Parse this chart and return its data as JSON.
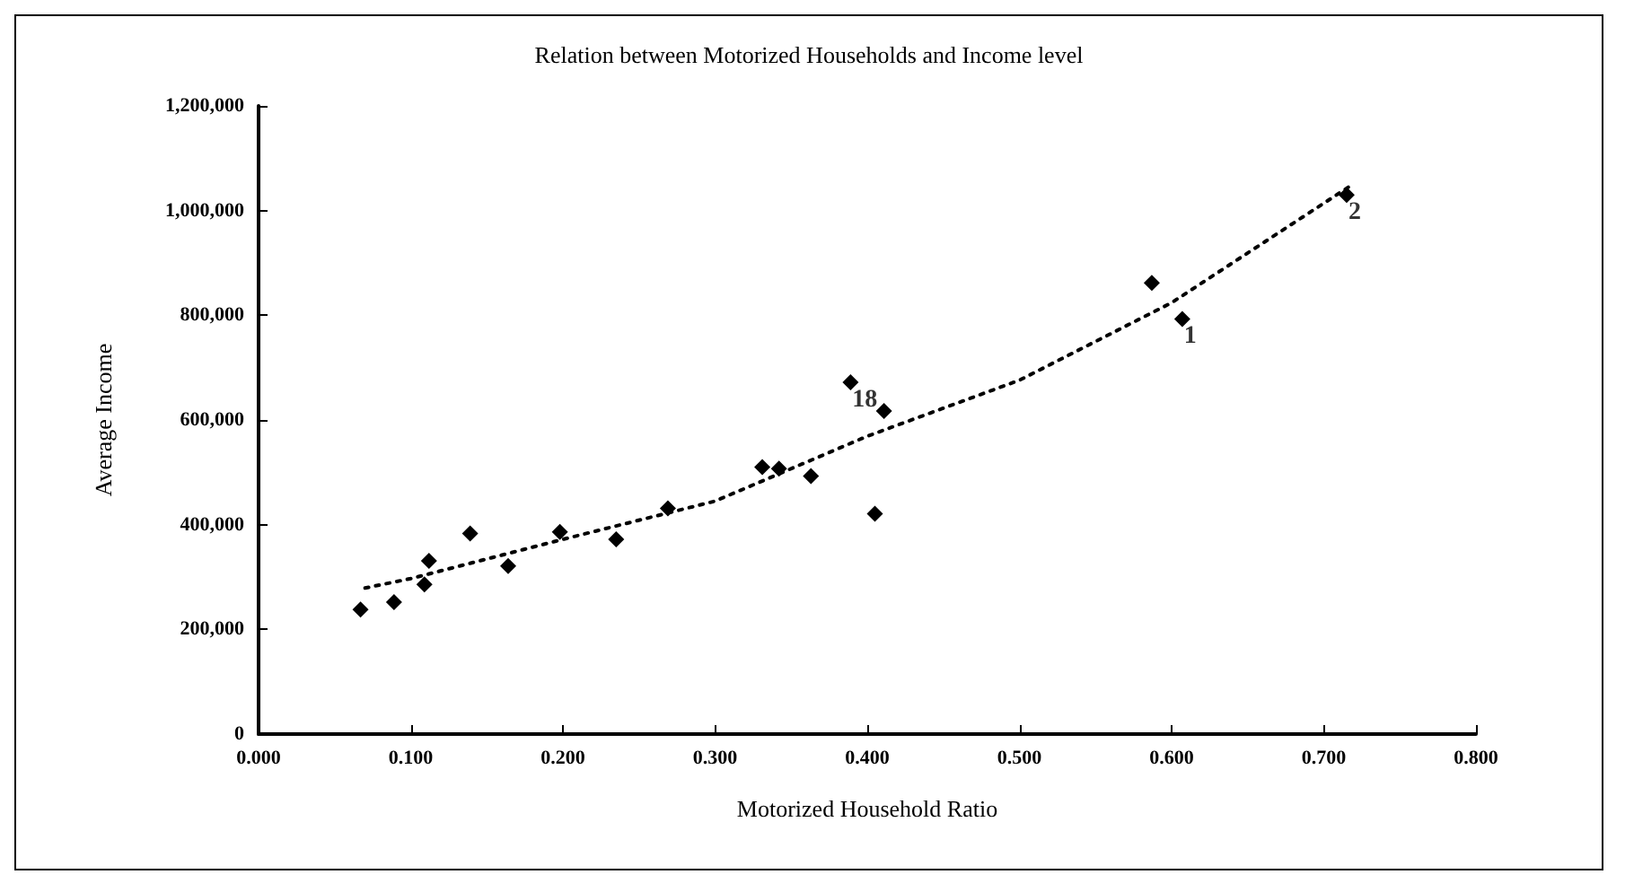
{
  "chart_data": {
    "type": "scatter",
    "title": "Relation between Motorized Households and Income level",
    "xlabel": "Motorized Household Ratio",
    "ylabel": "Average Income",
    "xlim": [
      0,
      0.8
    ],
    "xticks": [
      {
        "value": 0,
        "label": "0.000"
      },
      {
        "value": 0.1,
        "label": "0.100"
      },
      {
        "value": 0.2,
        "label": "0.200"
      },
      {
        "value": 0.3,
        "label": "0.300"
      },
      {
        "value": 0.4,
        "label": "0.400"
      },
      {
        "value": 0.5,
        "label": "0.500"
      },
      {
        "value": 0.6,
        "label": "0.600"
      },
      {
        "value": 0.7,
        "label": "0.700"
      },
      {
        "value": 0.8,
        "label": "0.800"
      }
    ],
    "ylim": [
      0,
      1200000
    ],
    "yticks": [
      0,
      {
        "value": 200000,
        "label": "200,000"
      },
      {
        "value": 400000,
        "label": "400,000"
      },
      {
        "value": 600000,
        "label": "600,000"
      },
      {
        "value": 800000,
        "label": "800,000"
      },
      {
        "value": 1000000,
        "label": "1,000,000"
      },
      {
        "value": 1200000,
        "label": "1,200,000"
      }
    ],
    "grid": false,
    "marker": "diamond",
    "series": [
      {
        "color": "#000000",
        "x": [
          0.067,
          0.089,
          0.109,
          0.112,
          0.139,
          0.164,
          0.198,
          0.235,
          0.269,
          0.331,
          0.342,
          0.363,
          0.389,
          0.405,
          0.411,
          0.587,
          0.607,
          0.715
        ],
        "values": [
          238000,
          252000,
          286000,
          331000,
          383000,
          321000,
          386000,
          372000,
          431000,
          510000,
          507000,
          493000,
          672000,
          421000,
          617000,
          862000,
          793000,
          1030000
        ]
      },
      {
        "type": "line",
        "color": "#000000",
        "line_style": "dotted",
        "marker": "none",
        "x": [
          0.07,
          0.1,
          0.2,
          0.3,
          0.4,
          0.5,
          0.6,
          0.72
        ],
        "values": [
          279000,
          297000,
          372000,
          445000,
          569000,
          676000,
          824000,
          1052000
        ]
      }
    ],
    "annotations": [
      {
        "text": "18",
        "x": 0.389,
        "y": 672000
      },
      {
        "text": "1",
        "x": 0.607,
        "y": 793000
      },
      {
        "text": "2",
        "x": 0.715,
        "y": 1030000
      }
    ]
  }
}
